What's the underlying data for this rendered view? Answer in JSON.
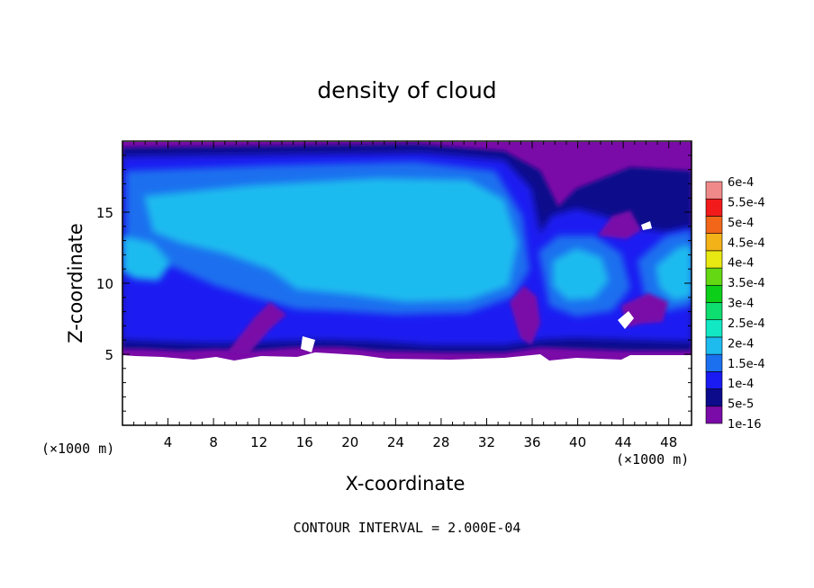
{
  "chart_data": {
    "type": "heatmap",
    "title": "density of cloud",
    "xlabel": "X-coordinate",
    "ylabel": "Z-coordinate",
    "x_unit": "(×1000 m)",
    "xlim": [
      0,
      50
    ],
    "ylim": [
      0,
      20
    ],
    "x_ticks": [
      4,
      8,
      12,
      16,
      20,
      24,
      28,
      32,
      36,
      40,
      44,
      48
    ],
    "y_ticks": [
      5,
      10,
      15
    ],
    "colorbar": {
      "labels": [
        "1e-16",
        "5e-5",
        "1e-4",
        "1.5e-4",
        "2e-4",
        "2.5e-4",
        "3e-4",
        "3.5e-4",
        "4e-4",
        "4.5e-4",
        "5e-4",
        "5.5e-4",
        "6e-4"
      ],
      "colors": [
        "#7a0ba8",
        "#0b0b8c",
        "#1a1af2",
        "#1a70ef",
        "#1ebbef",
        "#12e8c4",
        "#0edd70",
        "#0ccf1a",
        "#64d812",
        "#e8e812",
        "#f2b218",
        "#f2661a",
        "#f21a1a",
        "#f08a8a"
      ]
    },
    "contour_interval": "CONTOUR INTERVAL = 2.000E-04",
    "field_description": {
      "cloud_base_km": 5,
      "cloud_top_km": 19.6,
      "max_density_region": "cyan (2e-4 to 2.5e-4) between x 4-36, z 9-17",
      "no_cloud_below_km": 5
    }
  }
}
